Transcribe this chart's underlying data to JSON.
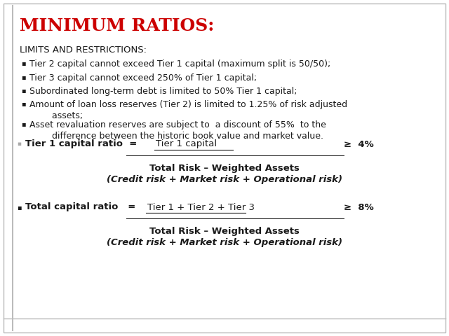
{
  "title": "MINIMUM RATIOS:",
  "title_color": "#cc0000",
  "title_fontsize": 18,
  "bg_color": "#ffffff",
  "border_color": "#bbbbbb",
  "section_header": "LIMITS AND RESTRICTIONS:",
  "section_header_fontsize": 9.5,
  "bullet_items": [
    "Tier 2 capital cannot exceed Tier 1 capital (maximum split is 50/50);",
    "Tier 3 capital cannot exceed 250% of Tier 1 capital;",
    "Subordinated long-term debt is limited to 50% Tier 1 capital;",
    "Amount of loan loss reserves (Tier 2) is limited to 1.25% of risk adjusted\n        assets;",
    "Asset revaluation reserves are subject to  a discount of 55%  to the\n        difference between the historic book value and market value."
  ],
  "bullet_fontsize": 9,
  "ratio1_label": "Tier 1 capital ratio  =",
  "ratio1_numerator": "Tier 1 capital",
  "ratio1_ge": "≥  4%",
  "ratio1_denom1": "Total Risk – Weighted Assets",
  "ratio1_denom2": "(Credit risk + Market risk + Operational risk)",
  "ratio2_label": "Total capital ratio   =",
  "ratio2_numerator": "Tier 1 + Tier 2 + Tier 3",
  "ratio2_ge": "≥  8%",
  "ratio2_denom1": "Total Risk – Weighted Assets",
  "ratio2_denom2": "(Credit risk + Market risk + Operational risk)",
  "ratio_fontsize": 9.5,
  "ratio_denom_fontsize": 9.5,
  "text_color": "#1a1a1a",
  "left_bar_color": "#999999"
}
